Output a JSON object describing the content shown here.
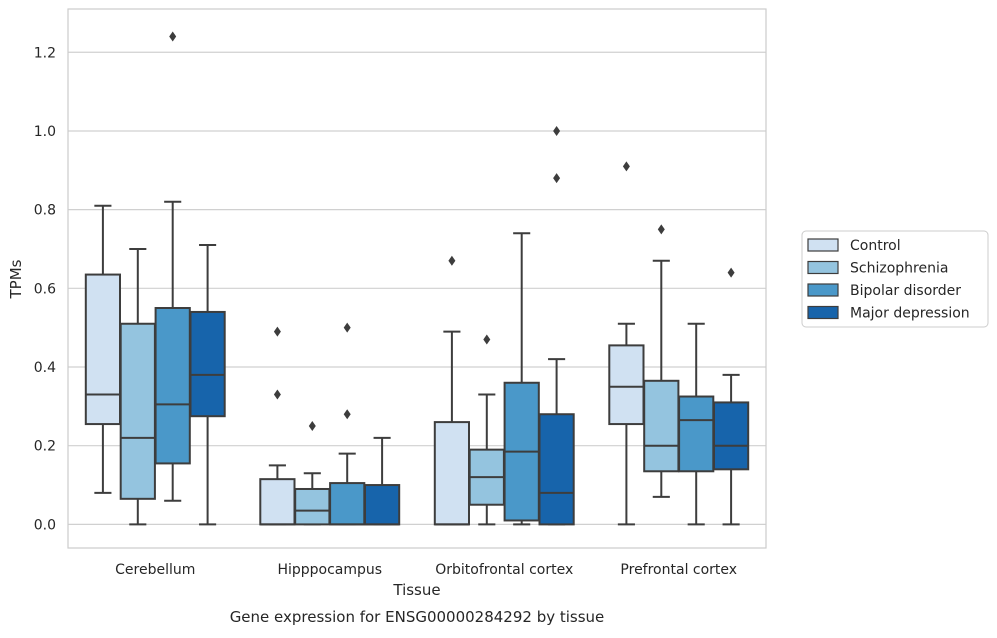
{
  "chart_data": {
    "type": "boxplot",
    "title": "",
    "caption": "Gene expression for ENSG00000284292 by tissue",
    "xlabel": "Tissue",
    "ylabel": "TPMs",
    "ylim": [
      -0.06,
      1.31
    ],
    "yticks": [
      0.0,
      0.2,
      0.4,
      0.6,
      0.8,
      1.0,
      1.2
    ],
    "ytick_labels": [
      "0.0",
      "0.2",
      "0.4",
      "0.6",
      "0.8",
      "1.0",
      "1.2"
    ],
    "grid": "horizontal",
    "legend_position": "right",
    "categories": [
      "Cerebellum",
      "Hipppocampus",
      "Orbitofrontal cortex",
      "Prefrontal cortex"
    ],
    "series": [
      {
        "name": "Control",
        "color": "#d0e1f2",
        "boxes": [
          {
            "q1": 0.255,
            "median": 0.33,
            "q3": 0.635,
            "whisker_low": 0.08,
            "whisker_high": 0.81,
            "outliers": []
          },
          {
            "q1": 0.0,
            "median": 0.0,
            "q3": 0.115,
            "whisker_low": 0.0,
            "whisker_high": 0.15,
            "outliers": [
              0.33,
              0.49
            ]
          },
          {
            "q1": 0.0,
            "median": 0.0,
            "q3": 0.26,
            "whisker_low": 0.0,
            "whisker_high": 0.49,
            "outliers": [
              0.67
            ]
          },
          {
            "q1": 0.255,
            "median": 0.35,
            "q3": 0.455,
            "whisker_low": 0.0,
            "whisker_high": 0.51,
            "outliers": [
              0.91
            ]
          }
        ]
      },
      {
        "name": "Schizophrenia",
        "color": "#94c4df",
        "boxes": [
          {
            "q1": 0.065,
            "median": 0.22,
            "q3": 0.51,
            "whisker_low": 0.0,
            "whisker_high": 0.7,
            "outliers": []
          },
          {
            "q1": 0.0,
            "median": 0.035,
            "q3": 0.09,
            "whisker_low": 0.0,
            "whisker_high": 0.13,
            "outliers": [
              0.25
            ]
          },
          {
            "q1": 0.05,
            "median": 0.12,
            "q3": 0.19,
            "whisker_low": 0.0,
            "whisker_high": 0.33,
            "outliers": [
              0.47
            ]
          },
          {
            "q1": 0.135,
            "median": 0.2,
            "q3": 0.365,
            "whisker_low": 0.07,
            "whisker_high": 0.67,
            "outliers": [
              0.75
            ]
          }
        ]
      },
      {
        "name": "Bipolar disorder",
        "color": "#4a98c9",
        "boxes": [
          {
            "q1": 0.155,
            "median": 0.305,
            "q3": 0.55,
            "whisker_low": 0.06,
            "whisker_high": 0.82,
            "outliers": [
              1.24
            ]
          },
          {
            "q1": 0.0,
            "median": 0.0,
            "q3": 0.105,
            "whisker_low": 0.0,
            "whisker_high": 0.18,
            "outliers": [
              0.28,
              0.5
            ]
          },
          {
            "q1": 0.01,
            "median": 0.185,
            "q3": 0.36,
            "whisker_low": 0.0,
            "whisker_high": 0.74,
            "outliers": []
          },
          {
            "q1": 0.135,
            "median": 0.265,
            "q3": 0.325,
            "whisker_low": 0.0,
            "whisker_high": 0.51,
            "outliers": []
          }
        ]
      },
      {
        "name": "Major depression",
        "color": "#1764ab",
        "boxes": [
          {
            "q1": 0.275,
            "median": 0.38,
            "q3": 0.54,
            "whisker_low": 0.0,
            "whisker_high": 0.71,
            "outliers": []
          },
          {
            "q1": 0.0,
            "median": 0.0,
            "q3": 0.1,
            "whisker_low": 0.0,
            "whisker_high": 0.22,
            "outliers": []
          },
          {
            "q1": 0.0,
            "median": 0.08,
            "q3": 0.28,
            "whisker_low": 0.0,
            "whisker_high": 0.42,
            "outliers": [
              0.88,
              1.0
            ]
          },
          {
            "q1": 0.14,
            "median": 0.2,
            "q3": 0.31,
            "whisker_low": 0.0,
            "whisker_high": 0.38,
            "outliers": [
              0.64
            ]
          }
        ]
      }
    ]
  }
}
